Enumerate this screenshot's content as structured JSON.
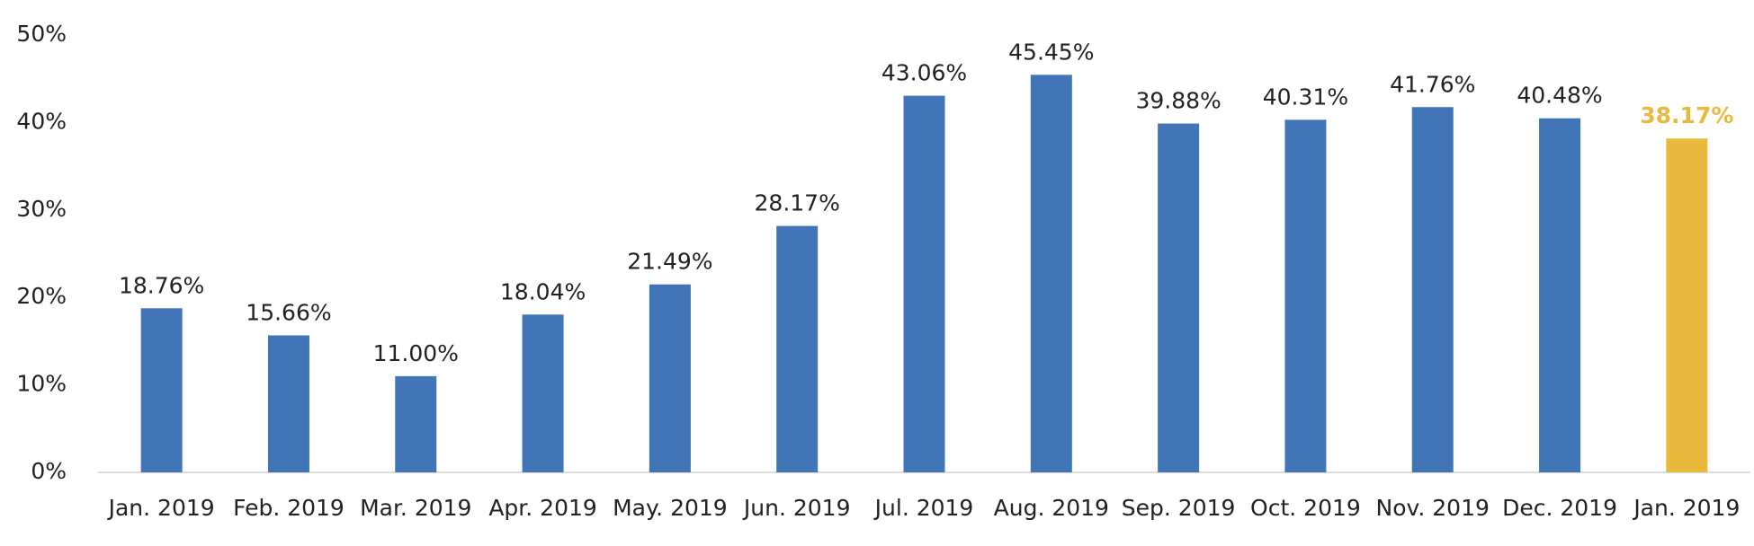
{
  "chart_data": {
    "type": "bar",
    "categories": [
      "Jan. 2019",
      "Feb. 2019",
      "Mar. 2019",
      "Apr. 2019",
      "May. 2019",
      "Jun. 2019",
      "Jul. 2019",
      "Aug. 2019",
      "Sep. 2019",
      "Oct. 2019",
      "Nov. 2019",
      "Dec. 2019",
      "Jan. 2019"
    ],
    "values": [
      18.76,
      15.66,
      11.0,
      18.04,
      21.49,
      28.17,
      43.06,
      45.45,
      39.88,
      40.31,
      41.76,
      40.48,
      38.17
    ],
    "value_labels": [
      "18.76%",
      "15.66%",
      "11.00%",
      "18.04%",
      "21.49%",
      "28.17%",
      "43.06%",
      "45.45%",
      "39.88%",
      "40.31%",
      "41.76%",
      "40.48%",
      "38.17%"
    ],
    "color": "#4275b7",
    "colors": [
      "#4275b7",
      "#4275b7",
      "#4275b7",
      "#4275b7",
      "#4275b7",
      "#4275b7",
      "#4275b7",
      "#4275b7",
      "#4275b7",
      "#4275b7",
      "#4275b7",
      "#4275b7",
      "#e8b93c"
    ],
    "ylim": [
      0,
      50
    ],
    "yticks": [
      {
        "value": 0,
        "label": "0%"
      },
      {
        "value": 10,
        "label": "10%"
      },
      {
        "value": 20,
        "label": "20%"
      },
      {
        "value": 30,
        "label": "30%"
      },
      {
        "value": 40,
        "label": "40%"
      },
      {
        "value": 50,
        "label": "50%"
      }
    ],
    "grid": false
  }
}
